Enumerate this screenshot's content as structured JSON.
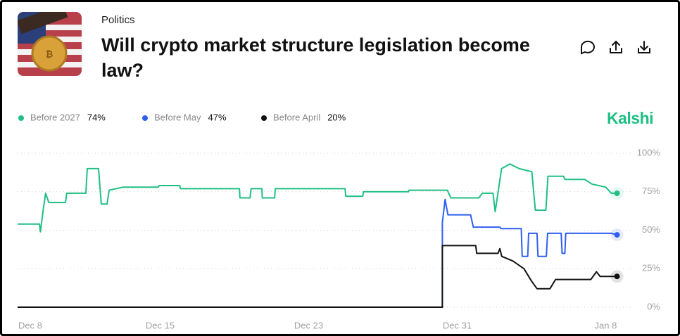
{
  "category": "Politics",
  "title": "Will crypto market structure legislation become law?",
  "brand": "Kalshi",
  "chart_data": {
    "type": "line",
    "xlim": [
      -0.68,
      32.5
    ],
    "xticks": [
      {
        "value": 0,
        "label": "Dec 8"
      },
      {
        "value": 7,
        "label": "Dec 15"
      },
      {
        "value": 15,
        "label": "Dec 23"
      },
      {
        "value": 23,
        "label": "Dec 31"
      },
      {
        "value": 31,
        "label": "Jan 8"
      }
    ],
    "ylim": [
      0,
      100
    ],
    "yticks": [
      {
        "value": 0,
        "label": "0%"
      },
      {
        "value": 25,
        "label": "25%"
      },
      {
        "value": 50,
        "label": "50%"
      },
      {
        "value": 75,
        "label": "75%"
      },
      {
        "value": 100,
        "label": "100%"
      }
    ],
    "grid": true,
    "series": [
      {
        "name": "Before 2027",
        "color": "#1fbf83",
        "current": {
          "value": 74,
          "label": "74%"
        },
        "x": [
          -0.68,
          0.5,
          0.55,
          0.72,
          0.83,
          1.0,
          1.9,
          1.97,
          3.0,
          3.07,
          3.68,
          3.83,
          4.14,
          4.25,
          5.0,
          6.9,
          6.95,
          8.05,
          8.1,
          11.27,
          11.3,
          11.84,
          11.9,
          12.48,
          12.5,
          13.17,
          13.2,
          16.96,
          17.0,
          17.91,
          17.95,
          20.38,
          20.4,
          22.47,
          22.66,
          24.17,
          24.36,
          24.93,
          25.05,
          25.39,
          25.84,
          26.34,
          27.02,
          27.21,
          27.78,
          27.89,
          28.73,
          28.8,
          29.87,
          30.25,
          31.0,
          31.3,
          31.61
        ],
        "values": [
          54,
          54,
          49,
          65,
          74,
          68,
          68,
          74,
          74,
          90,
          90,
          67,
          67,
          76,
          78,
          78,
          79,
          79,
          77,
          77,
          71,
          71,
          77,
          77,
          71,
          71,
          77,
          77,
          72,
          72,
          75,
          75,
          76,
          76,
          71,
          71,
          74,
          74,
          62,
          90,
          93,
          90,
          88,
          63,
          63,
          85,
          85,
          83,
          83,
          80,
          78,
          74,
          74
        ]
      },
      {
        "name": "Before May",
        "color": "#2f5ff0",
        "current": {
          "value": 47,
          "label": "47%"
        },
        "x": [
          -0.68,
          22.2,
          22.2,
          22.35,
          22.5,
          23.72,
          23.87,
          25.3,
          25.35,
          26.45,
          26.5,
          26.8,
          26.85,
          27.3,
          27.35,
          27.8,
          27.87,
          28.6,
          28.65,
          28.8,
          28.85,
          31.3,
          31.61
        ],
        "values": [
          0,
          0,
          55,
          70,
          60,
          60,
          52,
          52,
          51,
          51,
          33,
          33,
          48,
          48,
          33,
          33,
          48,
          48,
          35,
          35,
          48,
          48,
          47
        ]
      },
      {
        "name": "Before April",
        "color": "#111111",
        "current": {
          "value": 20,
          "label": "20%"
        },
        "x": [
          -0.68,
          22.2,
          22.2,
          24.0,
          24.05,
          25.2,
          25.3,
          25.4,
          26.0,
          26.6,
          27.0,
          27.3,
          28.0,
          28.3,
          30.2,
          30.5,
          30.7,
          31.61
        ],
        "values": [
          0,
          0,
          40,
          40,
          35,
          35,
          38,
          33,
          30,
          25,
          17,
          12,
          12,
          18,
          18,
          23,
          20,
          20
        ]
      }
    ]
  }
}
